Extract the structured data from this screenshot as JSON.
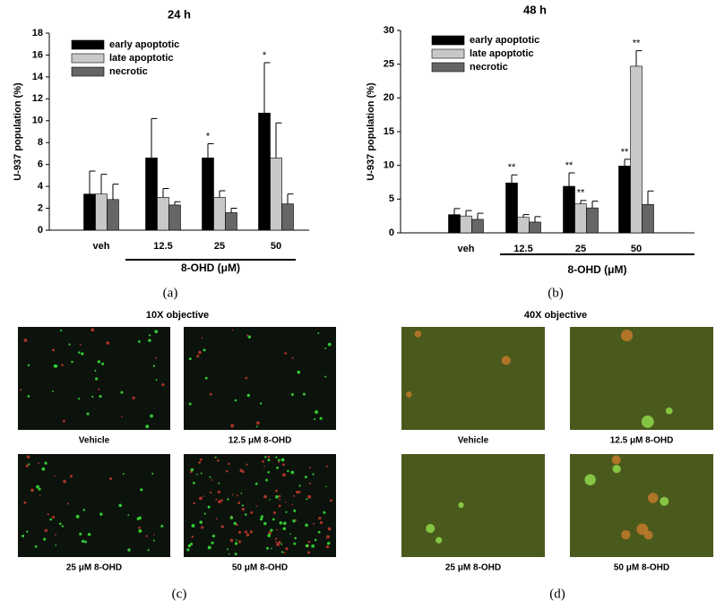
{
  "chart_data": [
    {
      "type": "bar",
      "title": "24 h",
      "ylabel": "U-937 population (%)",
      "xlabel": "8-OHD (μM)",
      "categories": [
        "veh",
        "12.5",
        "25",
        "50"
      ],
      "ylim": [
        0,
        18
      ],
      "yticks": [
        0,
        2,
        4,
        6,
        8,
        10,
        12,
        14,
        16,
        18
      ],
      "series": [
        {
          "name": "early apoptotic",
          "color": "#000000",
          "values": [
            3.3,
            6.6,
            6.6,
            10.7
          ],
          "errors": [
            2.1,
            3.6,
            1.3,
            4.6
          ],
          "significance": [
            null,
            null,
            "*",
            "*"
          ]
        },
        {
          "name": "late apoptotic",
          "color": "#c8c8c8",
          "values": [
            3.3,
            3.0,
            3.0,
            6.6
          ],
          "errors": [
            1.8,
            0.8,
            0.6,
            3.2
          ],
          "significance": [
            null,
            null,
            null,
            null
          ]
        },
        {
          "name": "necrotic",
          "color": "#666666",
          "values": [
            2.8,
            2.3,
            1.6,
            2.4
          ],
          "errors": [
            1.4,
            0.3,
            0.4,
            0.9
          ],
          "significance": [
            null,
            null,
            null,
            null
          ]
        }
      ]
    },
    {
      "type": "bar",
      "title": "48 h",
      "ylabel": "U-937 population (%)",
      "xlabel": "8-OHD (μM)",
      "categories": [
        "veh",
        "12.5",
        "25",
        "50"
      ],
      "ylim": [
        0,
        30
      ],
      "yticks": [
        0,
        5,
        10,
        15,
        20,
        25,
        30
      ],
      "series": [
        {
          "name": "early apoptotic",
          "color": "#000000",
          "values": [
            2.7,
            7.4,
            6.9,
            9.9
          ],
          "errors": [
            0.9,
            1.2,
            2.0,
            1.0
          ],
          "significance": [
            null,
            "**",
            "**",
            "**"
          ]
        },
        {
          "name": "late apoptotic",
          "color": "#c8c8c8",
          "values": [
            2.5,
            2.3,
            4.3,
            24.7
          ],
          "errors": [
            0.8,
            0.4,
            0.5,
            2.3
          ],
          "significance": [
            null,
            null,
            "**",
            "**"
          ]
        },
        {
          "name": "necrotic",
          "color": "#666666",
          "values": [
            2.0,
            1.6,
            3.7,
            4.2
          ],
          "errors": [
            0.9,
            0.8,
            1.0,
            2.0
          ],
          "significance": [
            null,
            null,
            null,
            null
          ]
        }
      ]
    }
  ],
  "panel_labels": [
    "(a)",
    "(b)",
    "(c)",
    "(d)"
  ],
  "micrographs": [
    {
      "title": "10X objective",
      "captions": [
        "Vehicle",
        "12.5 μM 8-OHD",
        "25 μM 8-OHD",
        "50 μM 8-OHD"
      ]
    },
    {
      "title": "40X objective",
      "captions": [
        "Vehicle",
        "12.5 μM 8-OHD",
        "25 μM 8-OHD",
        "50 μM 8-OHD"
      ]
    }
  ]
}
